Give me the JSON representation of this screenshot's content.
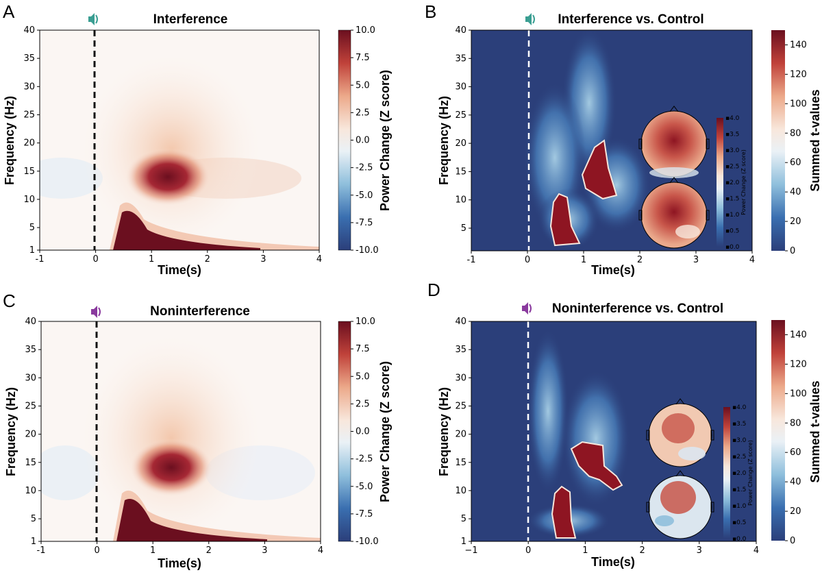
{
  "panels": [
    {
      "letter": "A",
      "title": "Interference",
      "icon_color": "#3a9e92",
      "xlabel": "Time(s)",
      "ylabel": "Frequency (Hz)",
      "cbar_label": "Power Change (Z score)"
    },
    {
      "letter": "B",
      "title": "Interference vs. Control",
      "icon_color": "#3a9e92",
      "xlabel": "Time(s)",
      "ylabel": "Frequency (Hz)",
      "cbar_label": "Summed t-values",
      "inset_label": "Power Change (Z score)"
    },
    {
      "letter": "C",
      "title": "Noninterference",
      "icon_color": "#8a3a9e",
      "xlabel": "Time(s)",
      "ylabel": "Frequency (Hz)",
      "cbar_label": "Power Change (Z score)"
    },
    {
      "letter": "D",
      "title": "Noninterference vs. Control",
      "icon_color": "#8a3a9e",
      "xlabel": "Time(s)",
      "ylabel": "Frequency (Hz)",
      "cbar_label": "Summed t-values",
      "inset_label": "Power Change (Z score)"
    }
  ],
  "chart_data": [
    {
      "type": "heatmap",
      "panel": "A",
      "title": "Interference",
      "xlabel": "Time(s)",
      "ylabel": "Frequency (Hz)",
      "x_range": [
        -1,
        4
      ],
      "y_range": [
        1,
        40
      ],
      "xticks": [
        "-1",
        "0",
        "1",
        "2",
        "3",
        "4"
      ],
      "yticks": [
        "1",
        "5",
        "10",
        "15",
        "20",
        "25",
        "30",
        "35",
        "40"
      ],
      "colorbar": {
        "label": "Power Change (Z score)",
        "range": [
          -10,
          10
        ],
        "ticks": [
          "10.0",
          "7.5",
          "5.0",
          "2.5",
          "0.0",
          "-2.5",
          "-5.0",
          "-7.5",
          "-10.0"
        ]
      },
      "stimulus_onset": 0,
      "features": [
        {
          "desc": "alpha/beta burst peak",
          "time": 1.3,
          "freq": 14,
          "z": 10
        },
        {
          "desc": "low-frequency onset response",
          "time": 0.6,
          "freq": 3,
          "z": 10
        }
      ]
    },
    {
      "type": "heatmap",
      "panel": "B",
      "title": "Interference vs. Control",
      "xlabel": "Time(s)",
      "ylabel": "Frequency (Hz)",
      "x_range": [
        -1,
        4
      ],
      "y_range": [
        1,
        40
      ],
      "xticks": [
        "-1",
        "0",
        "1",
        "2",
        "3",
        "4"
      ],
      "yticks": [
        "5",
        "10",
        "15",
        "20",
        "25",
        "30",
        "35",
        "40"
      ],
      "colorbar": {
        "label": "Summed t-values",
        "range": [
          0,
          150
        ],
        "ticks": [
          "140",
          "120",
          "100",
          "80",
          "60",
          "40",
          "20",
          "0"
        ]
      },
      "inset_colorbar": {
        "label": "Power Change (Z score)",
        "range": [
          0,
          4
        ],
        "ticks": [
          "4.0",
          "3.5",
          "3.0",
          "2.5",
          "2.0",
          "1.5",
          "1.0",
          "0.5",
          "0.0"
        ]
      },
      "stimulus_onset": 0
    },
    {
      "type": "heatmap",
      "panel": "C",
      "title": "Noninterference",
      "xlabel": "Time(s)",
      "ylabel": "Frequency (Hz)",
      "x_range": [
        -1,
        4
      ],
      "y_range": [
        1,
        40
      ],
      "xticks": [
        "-1",
        "0",
        "1",
        "2",
        "3",
        "4"
      ],
      "yticks": [
        "1",
        "5",
        "10",
        "15",
        "20",
        "25",
        "30",
        "35",
        "40"
      ],
      "colorbar": {
        "label": "Power Change (Z score)",
        "range": [
          -10,
          10
        ],
        "ticks": [
          "10.0",
          "7.5",
          "5.0",
          "2.5",
          "0.0",
          "-2.5",
          "-5.0",
          "-7.5",
          "-10.0"
        ]
      },
      "stimulus_onset": 0
    },
    {
      "type": "heatmap",
      "panel": "D",
      "title": "Noninterference vs. Control",
      "xlabel": "Time(s)",
      "ylabel": "Frequency (Hz)",
      "x_range": [
        -1,
        4
      ],
      "y_range": [
        1,
        40
      ],
      "xticks": [
        "−1",
        "0",
        "1",
        "2",
        "3",
        "4"
      ],
      "yticks": [
        "1",
        "5",
        "10",
        "15",
        "20",
        "25",
        "30",
        "35",
        "40"
      ],
      "colorbar": {
        "label": "Summed t-values",
        "range": [
          0,
          150
        ],
        "ticks": [
          "140",
          "120",
          "100",
          "80",
          "60",
          "40",
          "20",
          "0"
        ]
      },
      "inset_colorbar": {
        "label": "Power Change (Z score)",
        "range": [
          0,
          4
        ],
        "ticks": [
          "4.0",
          "3.5",
          "3.0",
          "2.5",
          "2.0",
          "1.5",
          "1.0",
          "0.5",
          "0.0"
        ]
      },
      "stimulus_onset": 0
    }
  ]
}
